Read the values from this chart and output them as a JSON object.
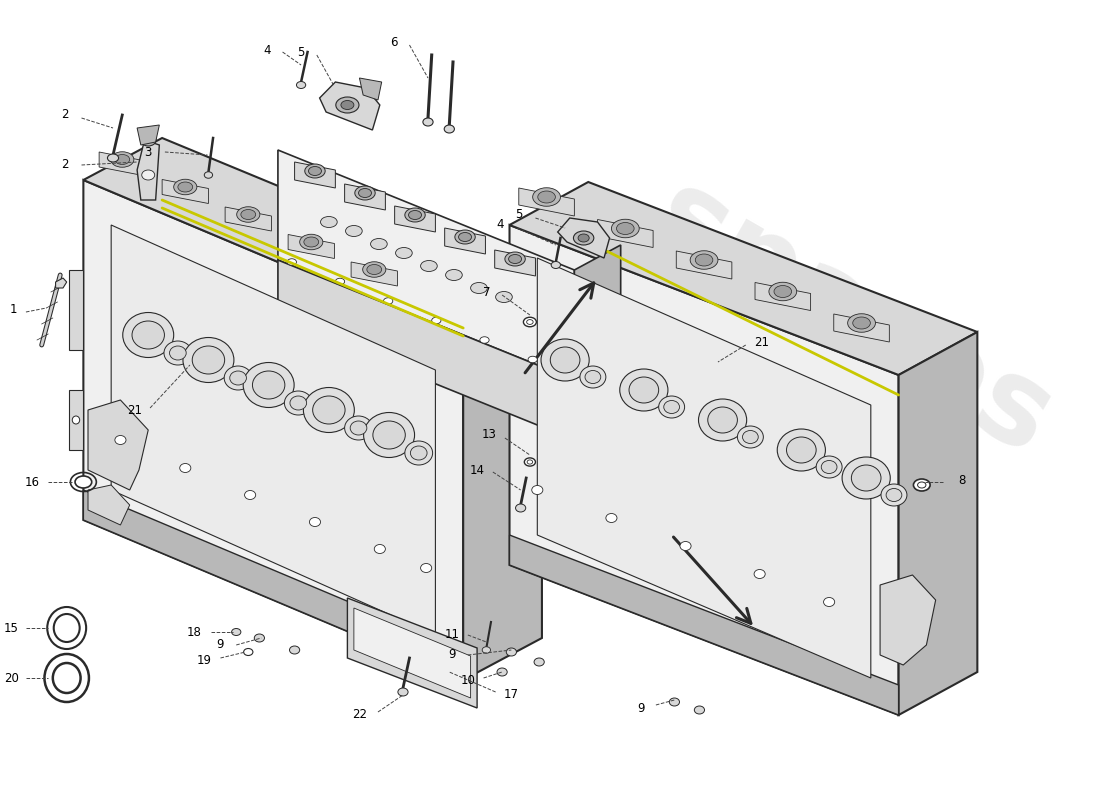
{
  "bg_color": "#ffffff",
  "lc": "#2a2a2a",
  "fill_light": "#f0f0f0",
  "fill_mid": "#d8d8d8",
  "fill_dark": "#b8b8b8",
  "fill_darker": "#a0a0a0",
  "yellow": "#c8c800",
  "watermark_color": "#e0e0e0",
  "watermark_yellow": "#d0d000"
}
